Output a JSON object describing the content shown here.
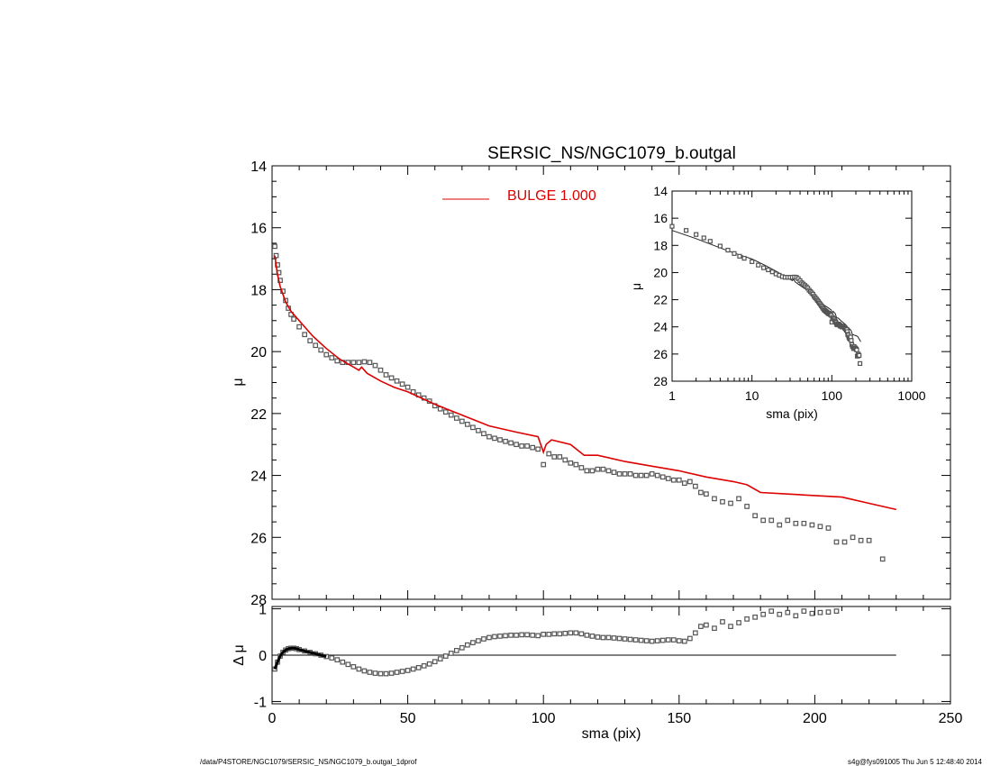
{
  "footer": {
    "left": "/data/P4STORE/NGC1079/SERSIC_NS/NGC1079_b.outgal_1dprof",
    "right": "s4g@fys091005  Thu Jun  5 12:48:40 2014"
  },
  "colors": {
    "model": "#dd0000",
    "data": "#555555",
    "axes": "#000000"
  },
  "chart_data": [
    {
      "id": "main",
      "type": "scatter",
      "title": "SERSIC_NS/NGC1079_b.outgal",
      "xlabel": "",
      "ylabel": "μ",
      "xlim": [
        0,
        250
      ],
      "ylim": [
        28,
        14
      ],
      "xticks": [
        0,
        50,
        100,
        150,
        200,
        250
      ],
      "yticks": [
        14,
        16,
        18,
        20,
        22,
        24,
        26,
        28
      ],
      "legend": {
        "label": "BULGE  1.000",
        "placement": "top-center"
      },
      "series": [
        {
          "name": "BULGE  1.000",
          "style": "line",
          "x": [
            1,
            2,
            3,
            5,
            7,
            10,
            15,
            20,
            25,
            30,
            32,
            33,
            35,
            40,
            45,
            50,
            60,
            70,
            80,
            90,
            98,
            100,
            101,
            103,
            110,
            115,
            120,
            130,
            140,
            150,
            160,
            170,
            175,
            180,
            190,
            200,
            210,
            220,
            230
          ],
          "y": [
            16.9,
            17.5,
            17.9,
            18.4,
            18.7,
            19.0,
            19.5,
            19.9,
            20.25,
            20.5,
            20.6,
            20.5,
            20.7,
            20.95,
            21.15,
            21.3,
            21.7,
            22.05,
            22.4,
            22.6,
            22.75,
            23.25,
            23.0,
            22.85,
            23.0,
            23.35,
            23.35,
            23.55,
            23.7,
            23.85,
            24.05,
            24.2,
            24.3,
            24.55,
            24.6,
            24.65,
            24.7,
            24.9,
            25.1
          ]
        },
        {
          "name": "",
          "style": "markers",
          "x": [
            1,
            1.5,
            2,
            2.5,
            3,
            4,
            5,
            6,
            7,
            8,
            10,
            12,
            14,
            16,
            18,
            20,
            22,
            24,
            26,
            28,
            30,
            32,
            34,
            36,
            38,
            40,
            42,
            44,
            46,
            48,
            50,
            52,
            54,
            56,
            58,
            60,
            62,
            64,
            66,
            68,
            70,
            72,
            74,
            76,
            78,
            80,
            82,
            84,
            86,
            88,
            90,
            92,
            94,
            96,
            98,
            100,
            102,
            104,
            106,
            108,
            110,
            112,
            114,
            116,
            118,
            120,
            122,
            124,
            126,
            128,
            130,
            132,
            134,
            136,
            138,
            140,
            142,
            144,
            146,
            148,
            150,
            152,
            154,
            156,
            158,
            160,
            163,
            166,
            169,
            172,
            175,
            178,
            181,
            184,
            187,
            190,
            193,
            196,
            199,
            202,
            205,
            208,
            211,
            214,
            217,
            220,
            225
          ],
          "y": [
            16.6,
            16.9,
            17.2,
            17.45,
            17.7,
            18.05,
            18.35,
            18.6,
            18.8,
            18.95,
            19.2,
            19.45,
            19.65,
            19.8,
            19.95,
            20.1,
            20.2,
            20.3,
            20.35,
            20.35,
            20.35,
            20.35,
            20.33,
            20.35,
            20.45,
            20.6,
            20.75,
            20.85,
            20.95,
            21.05,
            21.15,
            21.3,
            21.4,
            21.5,
            21.6,
            21.75,
            21.85,
            21.95,
            22.05,
            22.15,
            22.25,
            22.35,
            22.45,
            22.55,
            22.65,
            22.75,
            22.8,
            22.85,
            22.9,
            22.95,
            23.0,
            23.05,
            23.05,
            23.1,
            23.15,
            23.65,
            23.3,
            23.4,
            23.4,
            23.5,
            23.6,
            23.65,
            23.75,
            23.85,
            23.85,
            23.8,
            23.8,
            23.85,
            23.9,
            23.95,
            23.95,
            23.95,
            24.0,
            24.0,
            24.0,
            23.95,
            24.0,
            24.05,
            24.1,
            24.15,
            24.15,
            24.25,
            24.2,
            24.35,
            24.55,
            24.6,
            24.75,
            24.85,
            24.9,
            24.75,
            25.0,
            25.3,
            25.45,
            25.45,
            25.6,
            25.45,
            25.55,
            25.55,
            25.6,
            25.65,
            25.7,
            26.15,
            26.15,
            26.0,
            26.1,
            26.1,
            26.7
          ]
        }
      ]
    },
    {
      "id": "inset",
      "type": "scatter",
      "xlabel": "sma (pix)",
      "ylabel": "μ",
      "xscale": "log",
      "xlim": [
        1,
        1000
      ],
      "ylim": [
        28,
        14
      ],
      "xticks": [
        1,
        10,
        100,
        1000
      ],
      "xticklabels": [
        "1",
        "10",
        "100",
        "1000"
      ],
      "yticks": [
        14,
        16,
        18,
        20,
        22,
        24,
        26,
        28
      ]
    },
    {
      "id": "residual",
      "type": "scatter",
      "xlabel": "sma (pix)",
      "ylabel": "Δ μ",
      "xlim": [
        0,
        250
      ],
      "ylim": [
        -1.05,
        1.05
      ],
      "xticks": [
        0,
        50,
        100,
        150,
        200,
        250
      ],
      "yticks": [
        -1,
        0,
        1
      ],
      "zero_line": {
        "x": [
          0,
          230
        ],
        "y": 0
      },
      "series": [
        {
          "name": "",
          "style": "markers",
          "x": [
            1,
            2,
            3,
            4,
            5,
            6,
            7,
            8,
            9,
            10,
            12,
            14,
            16,
            18,
            20,
            22,
            24,
            26,
            28,
            30,
            32,
            34,
            36,
            38,
            40,
            42,
            44,
            46,
            48,
            50,
            52,
            54,
            56,
            58,
            60,
            62,
            64,
            66,
            68,
            70,
            72,
            74,
            76,
            78,
            80,
            82,
            84,
            86,
            88,
            90,
            92,
            94,
            96,
            98,
            100,
            102,
            104,
            106,
            108,
            110,
            112,
            114,
            116,
            118,
            120,
            122,
            124,
            126,
            128,
            130,
            132,
            134,
            136,
            138,
            140,
            142,
            144,
            146,
            148,
            150,
            152,
            154,
            156,
            158,
            160,
            163,
            166,
            169,
            172,
            175,
            178,
            181,
            184,
            187,
            190,
            193,
            196,
            199,
            202,
            205,
            208
          ],
          "y": [
            -0.3,
            -0.15,
            -0.02,
            0.06,
            0.11,
            0.14,
            0.15,
            0.15,
            0.14,
            0.12,
            0.09,
            0.06,
            0.03,
            0.0,
            -0.03,
            -0.06,
            -0.1,
            -0.15,
            -0.2,
            -0.25,
            -0.3,
            -0.34,
            -0.37,
            -0.39,
            -0.4,
            -0.4,
            -0.39,
            -0.37,
            -0.35,
            -0.33,
            -0.3,
            -0.27,
            -0.23,
            -0.19,
            -0.14,
            -0.08,
            -0.02,
            0.04,
            0.1,
            0.16,
            0.22,
            0.27,
            0.31,
            0.35,
            0.38,
            0.4,
            0.41,
            0.42,
            0.43,
            0.43,
            0.44,
            0.44,
            0.43,
            0.42,
            0.45,
            0.45,
            0.46,
            0.46,
            0.47,
            0.48,
            0.48,
            0.46,
            0.43,
            0.41,
            0.39,
            0.38,
            0.38,
            0.37,
            0.36,
            0.35,
            0.34,
            0.33,
            0.32,
            0.31,
            0.3,
            0.31,
            0.32,
            0.33,
            0.33,
            0.31,
            0.3,
            0.36,
            0.48,
            0.62,
            0.65,
            0.58,
            0.72,
            0.62,
            0.7,
            0.78,
            0.82,
            0.88,
            0.95,
            0.88,
            0.92,
            0.85,
            0.95,
            0.9,
            0.92,
            0.93,
            0.95
          ]
        }
      ]
    }
  ]
}
